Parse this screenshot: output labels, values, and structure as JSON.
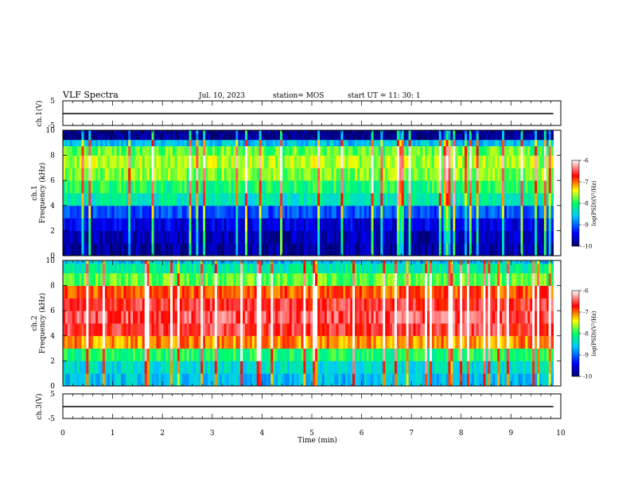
{
  "header": {
    "title": "VLF Spectra",
    "date": "Jul. 10, 2023",
    "station": "station= MOS",
    "start": "start UT =  11: 30: 1"
  },
  "chart_data": [
    {
      "type": "line",
      "ylabel": "ch.1(V)",
      "ylim": [
        -5,
        5
      ],
      "yticks": [
        "5",
        "-5"
      ],
      "series": [
        {
          "x": [
            0,
            9.85
          ],
          "y": [
            0,
            0
          ]
        }
      ]
    },
    {
      "type": "heatmap",
      "ylabel_line1": "ch.1",
      "ylabel_line2": "Frequency (kHz)",
      "ylim": [
        0,
        10
      ],
      "yticks": [
        "0",
        "2",
        "4",
        "6",
        "8",
        "10"
      ],
      "colorbar": {
        "ticks": [
          "-6",
          "-7",
          "-8",
          "-9",
          "-10"
        ],
        "label": "log(PSD)(V²/Hz)",
        "range": [
          -10,
          -6
        ]
      },
      "profile": {
        "freq_khz": [
          0.5,
          1.5,
          2.5,
          3.5,
          4.5,
          5.5,
          6.5,
          7.5,
          8.5,
          9.0,
          9.5,
          10.0
        ],
        "log_psd": [
          -9.8,
          -9.7,
          -9.5,
          -9.1,
          -8.3,
          -8.0,
          -7.7,
          -7.6,
          -7.8,
          -8.6,
          -9.9,
          -9.9
        ]
      }
    },
    {
      "type": "heatmap",
      "ylabel_line1": "ch.2",
      "ylabel_line2": "Frequency (kHz)",
      "ylim": [
        0,
        10
      ],
      "yticks": [
        "0",
        "2",
        "4",
        "6",
        "8",
        "10"
      ],
      "colorbar": {
        "ticks": [
          "-6",
          "-7",
          "-8",
          "-9",
          "-10"
        ],
        "label": "log(PSD)(V²/Hz)",
        "range": [
          -10,
          -6
        ]
      },
      "profile": {
        "freq_khz": [
          0.5,
          1.5,
          2.5,
          3.5,
          4.5,
          5.5,
          6.5,
          7.5,
          8.5,
          9.5,
          10.0
        ],
        "log_psd": [
          -8.6,
          -8.4,
          -8.0,
          -7.1,
          -6.6,
          -6.5,
          -6.6,
          -6.9,
          -7.8,
          -8.2,
          -8.6
        ]
      }
    },
    {
      "type": "line",
      "ylabel": "ch.3(V)",
      "ylim": [
        -5,
        5
      ],
      "yticks": [
        "5",
        "-5"
      ],
      "series": [
        {
          "x": [
            0,
            9.85
          ],
          "y": [
            0,
            0
          ]
        }
      ]
    }
  ],
  "xaxis": {
    "label": "Time (min)",
    "ticks": [
      "0",
      "1",
      "2",
      "3",
      "4",
      "5",
      "6",
      "7",
      "8",
      "9",
      "10"
    ],
    "range": [
      0,
      10
    ],
    "data_end": 9.85
  },
  "colors": {
    "scale": [
      "#00006e",
      "#0000ff",
      "#00c8ff",
      "#00ff64",
      "#ffff00",
      "#ff0000",
      "#ffffff"
    ]
  }
}
